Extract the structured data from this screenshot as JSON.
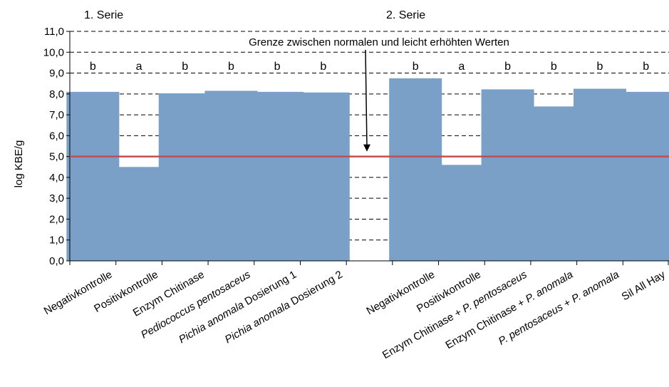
{
  "chart_data": {
    "type": "bar",
    "ylabel": "log KBE/g",
    "ylim": [
      0,
      11
    ],
    "yticks": [
      "0,0",
      "1,0",
      "2,0",
      "3,0",
      "4,0",
      "5,0",
      "6,0",
      "7,0",
      "8,0",
      "9,0",
      "10,0",
      "11,0"
    ],
    "series_headers": [
      "1. Serie",
      "2. Serie"
    ],
    "threshold": {
      "value": 5.0,
      "color": "#c0504d",
      "label": "Grenze zwischen normalen und leicht erhöhten Werten"
    },
    "bar_color": "#7ba0c7",
    "grid": "dashed horizontal",
    "categories": [
      {
        "label": "Negativkontrolle",
        "value": 8.1,
        "letter": "b"
      },
      {
        "label": "Positivkontrolle",
        "value": 4.5,
        "letter": "a"
      },
      {
        "label": "Enzym Chitinase",
        "value": 8.03,
        "letter": "b"
      },
      {
        "label": "Pediococcus pentosaceus",
        "value": 8.15,
        "letter": "b",
        "italic": [
          "Pediococcus pentosaceus"
        ]
      },
      {
        "label": "Pichia anomala Dosierung 1",
        "value": 8.1,
        "letter": "b",
        "italic": [
          "Pichia anomala"
        ]
      },
      {
        "label": "Pichia anomala Dosierung 2",
        "value": 8.07,
        "letter": "b",
        "italic": [
          "Pichia anomala"
        ]
      },
      {
        "label": "",
        "value": null,
        "letter": ""
      },
      {
        "label": "Negativkontrolle",
        "value": 8.75,
        "letter": "b"
      },
      {
        "label": "Positivkontrolle",
        "value": 4.6,
        "letter": "a"
      },
      {
        "label": "Enzym Chitinase + P. pentosaceus",
        "value": 8.22,
        "letter": "b",
        "italic": [
          "P. pentosaceus"
        ]
      },
      {
        "label": "Enzym Chitinase + P. anomala",
        "value": 7.4,
        "letter": "b",
        "italic": [
          "P. anomala"
        ]
      },
      {
        "label": "P. pentosaceus + P. anomala",
        "value": 8.25,
        "letter": "b",
        "italic": [
          "P. pentosaceus",
          "P. anomala"
        ]
      },
      {
        "label": "Sil All Hay",
        "value": 8.1,
        "letter": "b"
      }
    ]
  }
}
